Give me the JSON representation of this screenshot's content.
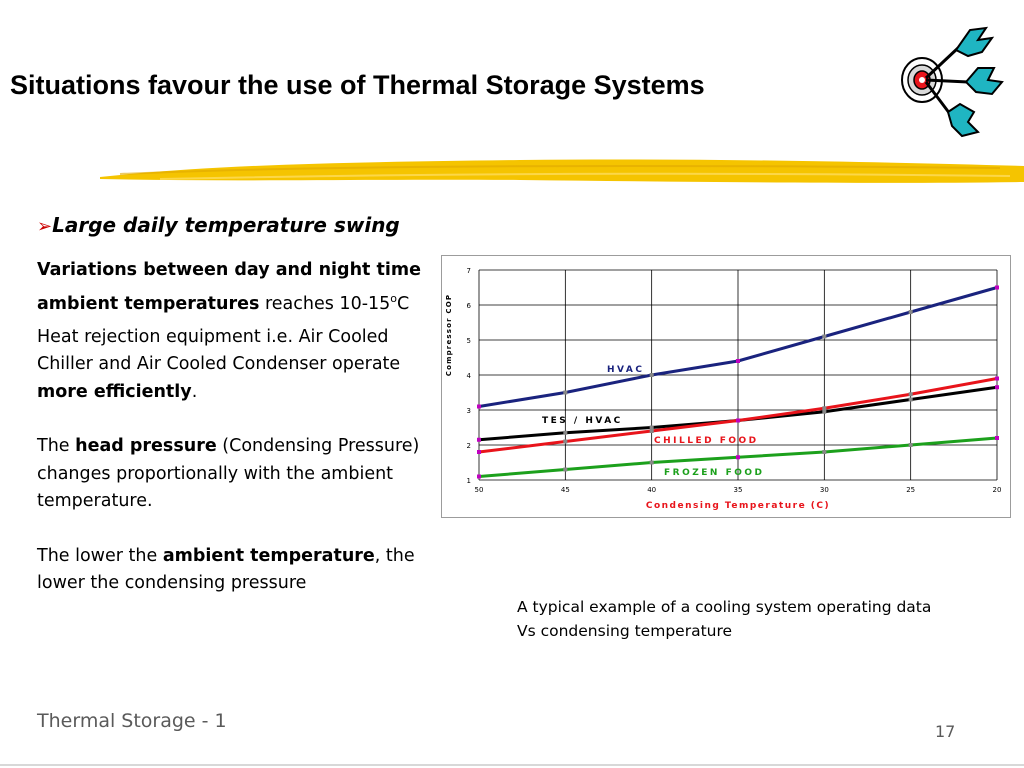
{
  "slide": {
    "title": "Situations favour the use of Thermal Storage Systems",
    "footer_left": "Thermal Storage - 1",
    "page_number": "17"
  },
  "colors": {
    "accent_bullet": "#cc0000",
    "decor_stroke": "#f5c400",
    "dart_teal": "#1fb5c2"
  },
  "bullet": {
    "arrow": "➢",
    "heading": "Large daily temperature swing"
  },
  "body": {
    "p1_bold": "Variations between day and night time ambient temperatures",
    "p1_rest": " reaches 10-15",
    "p1_sup": "o",
    "p1_unit": "C",
    "p2_start": "Heat rejection equipment i.e. Air Cooled Chiller and Air Cooled Condenser operate ",
    "p2_bold": "more efficiently",
    "p2_end": ".",
    "p3_start": "The ",
    "p3_bold": "head pressure",
    "p3_end": " (Condensing Pressure) changes proportionally with the ambient temperature.",
    "p4_start": "The lower the ",
    "p4_bold": "ambient temperature",
    "p4_end": ", the lower the condensing pressure"
  },
  "caption": {
    "line1": "A typical example of a cooling system operating data",
    "line2": "Vs condensing temperature"
  },
  "chart_data": {
    "type": "line",
    "xlabel": "Condensing Temperature (C)",
    "ylabel": "Compressor COP",
    "x": [
      50,
      45,
      40,
      35,
      30,
      25,
      20
    ],
    "x_tick_labels": [
      "50",
      "45",
      "40",
      "35",
      "30",
      "25",
      "20"
    ],
    "xlim": [
      50,
      20
    ],
    "ylim": [
      1,
      7
    ],
    "y_ticks": [
      1,
      2,
      3,
      4,
      5,
      6,
      7
    ],
    "grid": true,
    "series": [
      {
        "name": "HVAC",
        "color": "#1a237e",
        "label_color": "#1a237e",
        "values": [
          3.1,
          3.5,
          4.0,
          4.4,
          5.1,
          5.8,
          6.5
        ]
      },
      {
        "name": "TES / HVAC",
        "color": "#000000",
        "label_color": "#000000",
        "values": [
          2.15,
          2.35,
          2.5,
          2.7,
          2.95,
          3.3,
          3.65
        ]
      },
      {
        "name": "CHILLED FOOD",
        "color": "#e8141b",
        "label_color": "#e8141b",
        "values": [
          1.8,
          2.1,
          2.4,
          2.7,
          3.05,
          3.45,
          3.9
        ]
      },
      {
        "name": "FROZEN FOOD",
        "color": "#1ca01c",
        "label_color": "#1ca01c",
        "values": [
          1.1,
          1.3,
          1.5,
          1.65,
          1.8,
          2.0,
          2.2
        ]
      }
    ],
    "series_label_positions": [
      "top-middle",
      "middle-left",
      "middle",
      "bottom-middle"
    ]
  }
}
